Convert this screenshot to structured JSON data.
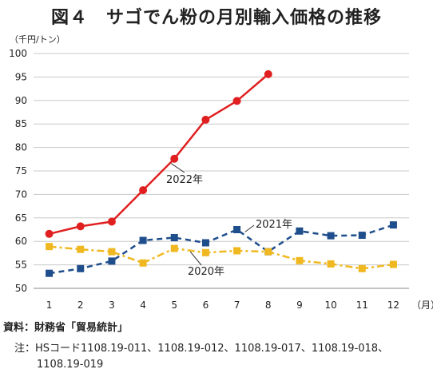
{
  "title": "図４　サゴでん粉の月別輸入価格の推移",
  "chart_data": {
    "type": "line",
    "ylabel": "（千円/トン）",
    "xlabel": "（月）",
    "x": [
      1,
      2,
      3,
      4,
      5,
      6,
      7,
      8,
      9,
      10,
      11,
      12
    ],
    "ylim": [
      50,
      100
    ],
    "yticks": [
      50,
      55,
      60,
      65,
      70,
      75,
      80,
      85,
      90,
      95,
      100
    ],
    "grid": true,
    "series": [
      {
        "name": "2022年",
        "color": "#e02020",
        "style": "solid",
        "marker": "circle",
        "values": [
          61.6,
          63.2,
          64.2,
          70.9,
          77.6,
          85.9,
          89.9,
          95.6,
          null,
          null,
          null,
          null
        ]
      },
      {
        "name": "2021年",
        "color": "#1f4e8c",
        "style": "dashed",
        "marker": "square",
        "values": [
          53.2,
          54.2,
          55.8,
          60.2,
          60.8,
          59.7,
          62.5,
          57.8,
          62.2,
          61.2,
          61.3,
          63.5
        ]
      },
      {
        "name": "2020年",
        "color": "#f0b820",
        "style": "dashdot",
        "marker": "square",
        "values": [
          58.9,
          58.3,
          57.8,
          55.4,
          58.5,
          57.6,
          58.0,
          57.8,
          55.9,
          55.2,
          54.2,
          55.1
        ]
      }
    ]
  },
  "source": "資料：財務省「貿易統計」",
  "note_line1": "注：HSコード1108.19-011、1108.19-012、1108.19-017、1108.19-018、",
  "note_line2": "1108.19-019"
}
